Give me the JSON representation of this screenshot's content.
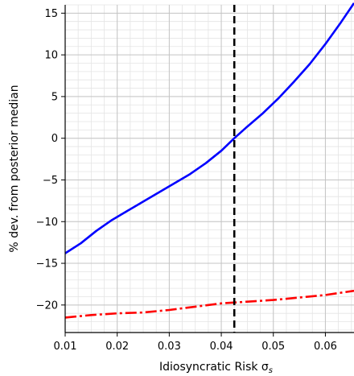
{
  "chart_data": {
    "type": "line",
    "title": "",
    "xlabel": "Idiosyncratic Risk σ",
    "xlabel_subscript": "s",
    "ylabel": "% dev. from posterior median",
    "xlim": [
      0.01,
      0.0655
    ],
    "ylim": [
      -23.3,
      16
    ],
    "x_ticks": [
      0.01,
      0.02,
      0.03,
      0.04,
      0.05,
      0.06
    ],
    "x_tick_labels": [
      "0.01",
      "0.02",
      "0.03",
      "0.04",
      "0.05",
      "0.06"
    ],
    "y_ticks": [
      15,
      10,
      5,
      0,
      -5,
      -10,
      -15,
      -20
    ],
    "y_tick_labels": [
      "15",
      "10",
      "5",
      "0",
      "−5",
      "−10",
      "−15",
      "−20"
    ],
    "grid": true,
    "minor_grid": true,
    "vline": {
      "x": 0.0425,
      "style": "dashed",
      "color": "#000000"
    },
    "series": [
      {
        "color": "#0000ff",
        "style": "solid",
        "x": [
          0.01,
          0.013,
          0.016,
          0.019,
          0.022,
          0.025,
          0.028,
          0.031,
          0.034,
          0.037,
          0.04,
          0.0425,
          0.045,
          0.048,
          0.051,
          0.054,
          0.057,
          0.06,
          0.063,
          0.0655
        ],
        "y": [
          -13.8,
          -12.6,
          -11.1,
          -9.8,
          -8.7,
          -7.6,
          -6.5,
          -5.4,
          -4.3,
          -3.0,
          -1.5,
          0.0,
          1.4,
          3.0,
          4.8,
          6.8,
          8.9,
          11.3,
          13.9,
          16.2
        ]
      },
      {
        "color": "#ff0000",
        "style": "dashdot",
        "x": [
          0.01,
          0.015,
          0.02,
          0.025,
          0.03,
          0.035,
          0.04,
          0.045,
          0.05,
          0.055,
          0.06,
          0.0655
        ],
        "y": [
          -21.5,
          -21.2,
          -21.0,
          -20.9,
          -20.6,
          -20.2,
          -19.8,
          -19.6,
          -19.4,
          -19.1,
          -18.8,
          -18.3
        ]
      }
    ]
  }
}
